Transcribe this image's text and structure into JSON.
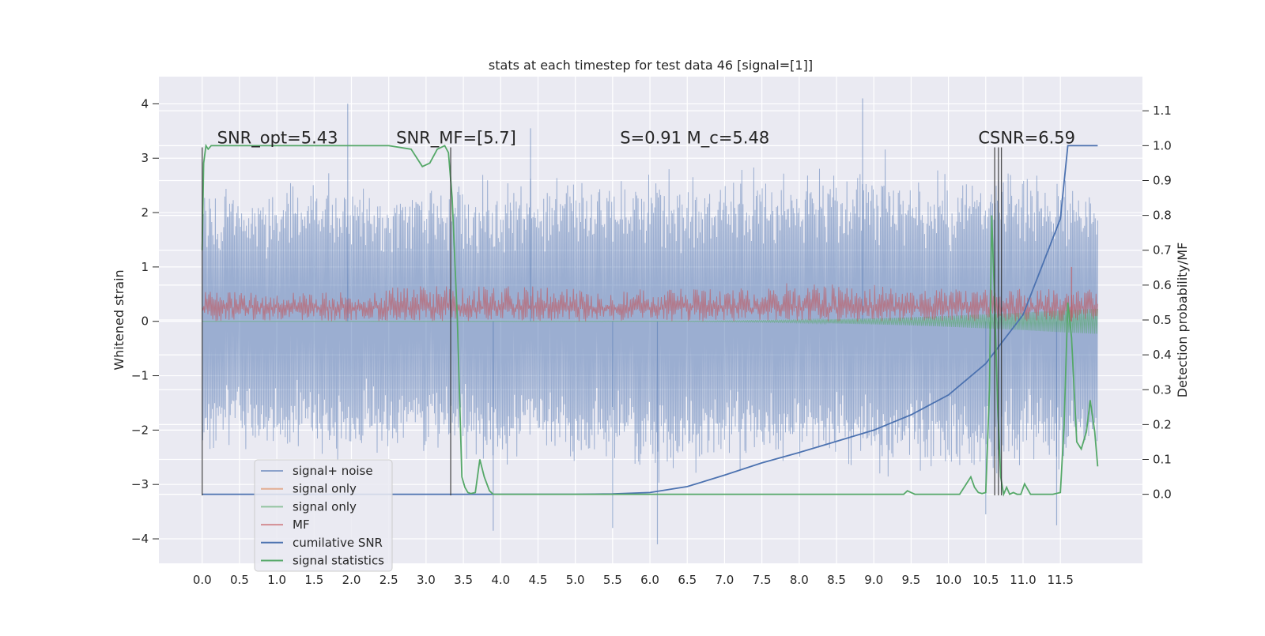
{
  "chart_data": {
    "type": "line",
    "title": "stats at each timestep for test data 46 [signal=[1]]",
    "xlabel": "",
    "ylabel": "Whitened strain",
    "ylabel_right": "Detection probability/MF",
    "xlim": [
      -0.58,
      12.6
    ],
    "ylim": [
      -4.45,
      4.5
    ],
    "ylim_right": [
      -0.198,
      1.198
    ],
    "grid": true,
    "x_ticks": [
      "0.0",
      "0.5",
      "1.0",
      "1.5",
      "2.0",
      "2.5",
      "3.0",
      "3.5",
      "4.0",
      "4.5",
      "5.0",
      "5.5",
      "6.0",
      "6.5",
      "7.0",
      "7.5",
      "8.0",
      "8.5",
      "9.0",
      "9.5",
      "10.0",
      "10.5",
      "11.0",
      "11.5"
    ],
    "y_ticks_left": [
      "−4",
      "−3",
      "−2",
      "−1",
      "0",
      "1",
      "2",
      "3",
      "4"
    ],
    "y_ticks_right": [
      "0.0",
      "0.1",
      "0.2",
      "0.3",
      "0.4",
      "0.5",
      "0.6",
      "0.7",
      "0.8",
      "0.9",
      "1.0",
      "1.1"
    ],
    "annotations": [
      {
        "text": "SNR_opt=5.43",
        "x": 0.2,
        "y": 3.27
      },
      {
        "text": "SNR_MF=[5.7]",
        "x": 2.6,
        "y": 3.27
      },
      {
        "text": "S=0.91  M_c=5.48",
        "x": 5.6,
        "y": 3.27
      },
      {
        "text": "CSNR=6.59",
        "x": 10.4,
        "y": 3.27
      }
    ],
    "vertical_lines_x": [
      0.0,
      3.33,
      10.62,
      10.67,
      10.71
    ],
    "legend": {
      "placement": "lower-left",
      "entries": [
        {
          "label": "signal+ noise",
          "color": "#4c72b0"
        },
        {
          "label": "signal only",
          "color": "#dd8452"
        },
        {
          "label": "signal only",
          "color": "#55a868"
        },
        {
          "label": "MF",
          "color": "#c44e52"
        },
        {
          "label": "cumilative SNR",
          "color": "#4c72b0"
        },
        {
          "label": "signal statistics",
          "color": "#55a868"
        }
      ]
    },
    "series": [
      {
        "name": "signal+ noise",
        "axis": "left",
        "color": "#4c72b0",
        "x_range": [
          0.0,
          12.0
        ],
        "envelope_x": [
          0.0,
          0.5,
          1.0,
          1.5,
          2.0,
          2.5,
          3.0,
          3.5,
          4.0,
          4.5,
          5.0,
          5.5,
          6.0,
          6.5,
          7.0,
          7.5,
          8.0,
          8.5,
          9.0,
          9.5,
          10.0,
          10.5,
          11.0,
          11.5,
          12.0
        ],
        "envelope_upper": [
          2.6,
          2.8,
          2.7,
          2.9,
          2.8,
          2.7,
          2.9,
          2.8,
          3.0,
          2.9,
          3.0,
          2.8,
          3.1,
          2.9,
          3.0,
          3.1,
          3.0,
          3.1,
          3.3,
          3.2,
          3.0,
          3.1,
          2.9,
          3.2,
          2.6
        ],
        "envelope_lower": [
          -2.5,
          -2.6,
          -2.7,
          -2.6,
          -2.8,
          -2.7,
          -2.6,
          -2.8,
          -2.9,
          -2.7,
          -3.0,
          -2.8,
          -3.1,
          -2.9,
          -2.9,
          -3.0,
          -2.8,
          -2.9,
          -3.1,
          -3.0,
          -2.9,
          -3.2,
          -2.9,
          -3.0,
          -2.5
        ],
        "spikes": [
          {
            "x": 1.95,
            "y": 4.0
          },
          {
            "x": 4.4,
            "y": 3.55
          },
          {
            "x": 8.85,
            "y": 4.1
          },
          {
            "x": 3.9,
            "y": -3.85
          },
          {
            "x": 5.5,
            "y": -3.8
          },
          {
            "x": 6.1,
            "y": -4.1
          },
          {
            "x": 11.45,
            "y": -3.75
          },
          {
            "x": 10.5,
            "y": -3.55
          }
        ]
      },
      {
        "name": "signal only",
        "axis": "left",
        "color": "#55a868",
        "x": [
          0.0,
          6.5,
          7.0,
          7.5,
          8.0,
          8.5,
          9.0,
          9.5,
          10.0,
          10.5,
          11.0,
          11.5,
          12.0
        ],
        "amplitude": [
          0.0,
          0.003,
          0.008,
          0.015,
          0.025,
          0.04,
          0.055,
          0.075,
          0.1,
          0.13,
          0.16,
          0.2,
          0.23
        ]
      },
      {
        "name": "MF",
        "axis": "left",
        "color": "#c44e52",
        "x_range": [
          0.0,
          12.0
        ],
        "mean": 0.25,
        "envelope_upper": [
          0.55,
          0.65,
          0.6,
          0.7,
          0.6,
          0.55
        ],
        "envelope_lower": [
          0.0,
          0.0,
          0.0,
          0.0,
          0.0,
          0.0
        ],
        "spike": {
          "x": 11.65,
          "y": 1.0
        }
      },
      {
        "name": "cumilative SNR",
        "axis": "right",
        "color": "#4c72b0",
        "x": [
          0.0,
          5.0,
          5.5,
          6.0,
          6.5,
          7.0,
          7.5,
          8.0,
          8.5,
          9.0,
          9.5,
          10.0,
          10.5,
          11.0,
          11.5,
          11.6,
          12.0
        ],
        "y": [
          0.0,
          0.0,
          0.001,
          0.005,
          0.022,
          0.055,
          0.09,
          0.12,
          0.152,
          0.184,
          0.228,
          0.285,
          0.375,
          0.515,
          0.79,
          1.0,
          1.0
        ]
      },
      {
        "name": "signal statistics",
        "axis": "right",
        "color": "#55a868",
        "x": [
          0.0,
          0.02,
          0.05,
          0.08,
          0.12,
          0.3,
          1.0,
          2.0,
          2.5,
          2.8,
          2.95,
          3.05,
          3.15,
          3.25,
          3.3,
          3.35,
          3.42,
          3.48,
          3.52,
          3.56,
          3.6,
          3.66,
          3.72,
          3.78,
          3.85,
          3.9,
          4.0,
          9.4,
          9.45,
          9.5,
          9.55,
          9.6,
          10.0,
          10.15,
          10.3,
          10.35,
          10.4,
          10.45,
          10.5,
          10.55,
          10.58,
          10.62,
          10.66,
          10.7,
          10.74,
          10.78,
          10.82,
          10.87,
          10.92,
          10.97,
          11.02,
          11.1,
          11.2,
          11.4,
          11.5,
          11.55,
          11.6,
          11.65,
          11.72,
          11.78,
          11.85,
          11.9,
          11.96,
          12.0
        ],
        "y": [
          0.7,
          0.95,
          1.0,
          0.99,
          1.0,
          1.0,
          1.0,
          1.0,
          1.0,
          0.99,
          0.94,
          0.95,
          0.99,
          1.0,
          0.98,
          0.85,
          0.5,
          0.05,
          0.02,
          0.005,
          0.002,
          0.005,
          0.1,
          0.05,
          0.01,
          0.0,
          0.0,
          0.0,
          0.01,
          0.005,
          0.0,
          0.0,
          0.0,
          0.0,
          0.05,
          0.02,
          0.005,
          0.002,
          0.005,
          0.3,
          0.8,
          0.55,
          0.25,
          0.05,
          0.0,
          0.02,
          0.0,
          0.005,
          0.0,
          0.0,
          0.03,
          0.0,
          0.0,
          0.0,
          0.005,
          0.2,
          0.55,
          0.45,
          0.15,
          0.13,
          0.18,
          0.27,
          0.18,
          0.08
        ]
      }
    ]
  }
}
